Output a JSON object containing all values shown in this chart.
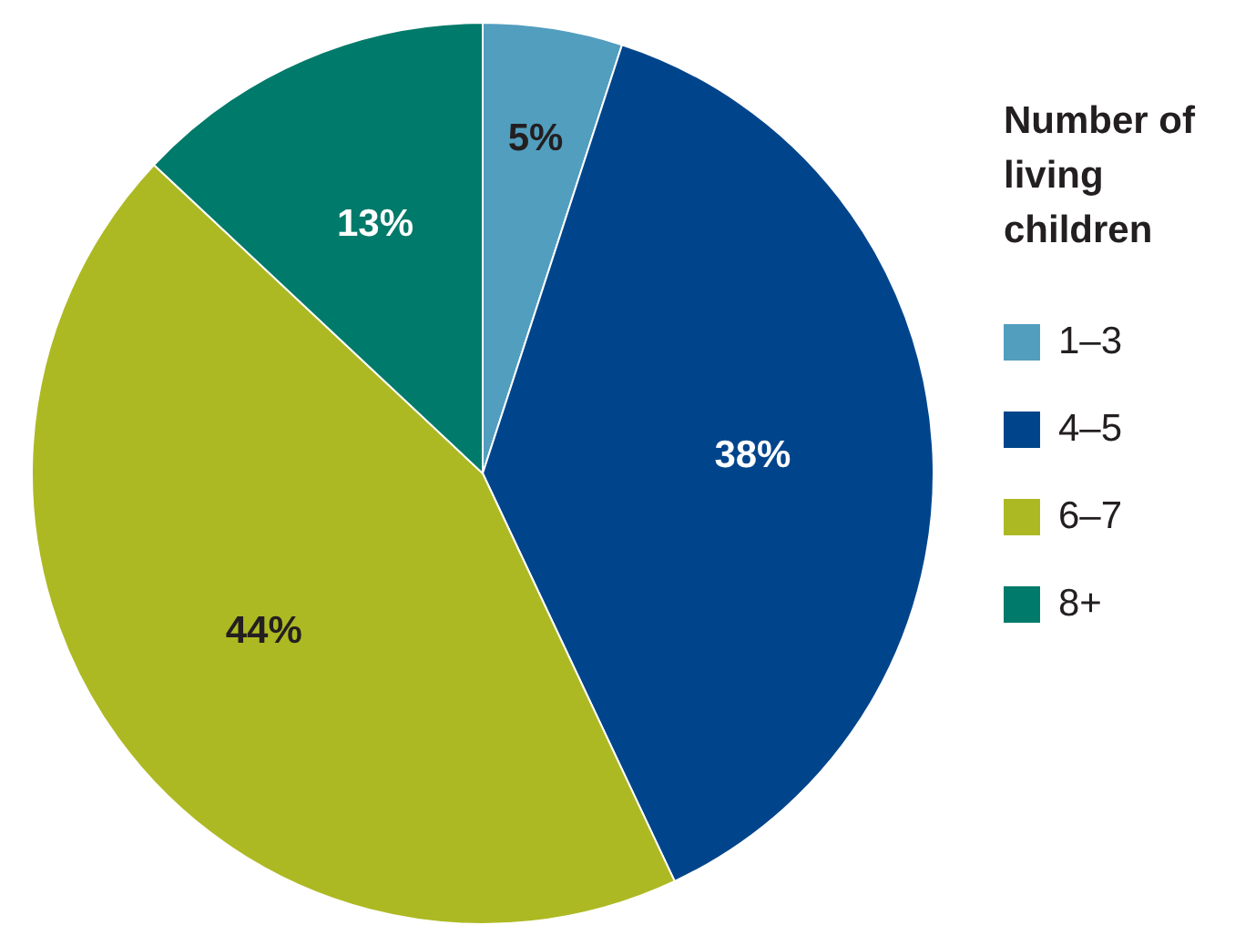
{
  "chart_data": {
    "type": "pie",
    "legend_title": "Number of living children",
    "legend": "right",
    "categories": [
      "1–3",
      "4–5",
      "6–7",
      "8+"
    ],
    "values": [
      5,
      38,
      44,
      13
    ],
    "colors": [
      "#529ebf",
      "#00458c",
      "#adb922",
      "#007a6a"
    ],
    "value_labels": [
      "5%",
      "38%",
      "44%",
      "13%"
    ]
  }
}
